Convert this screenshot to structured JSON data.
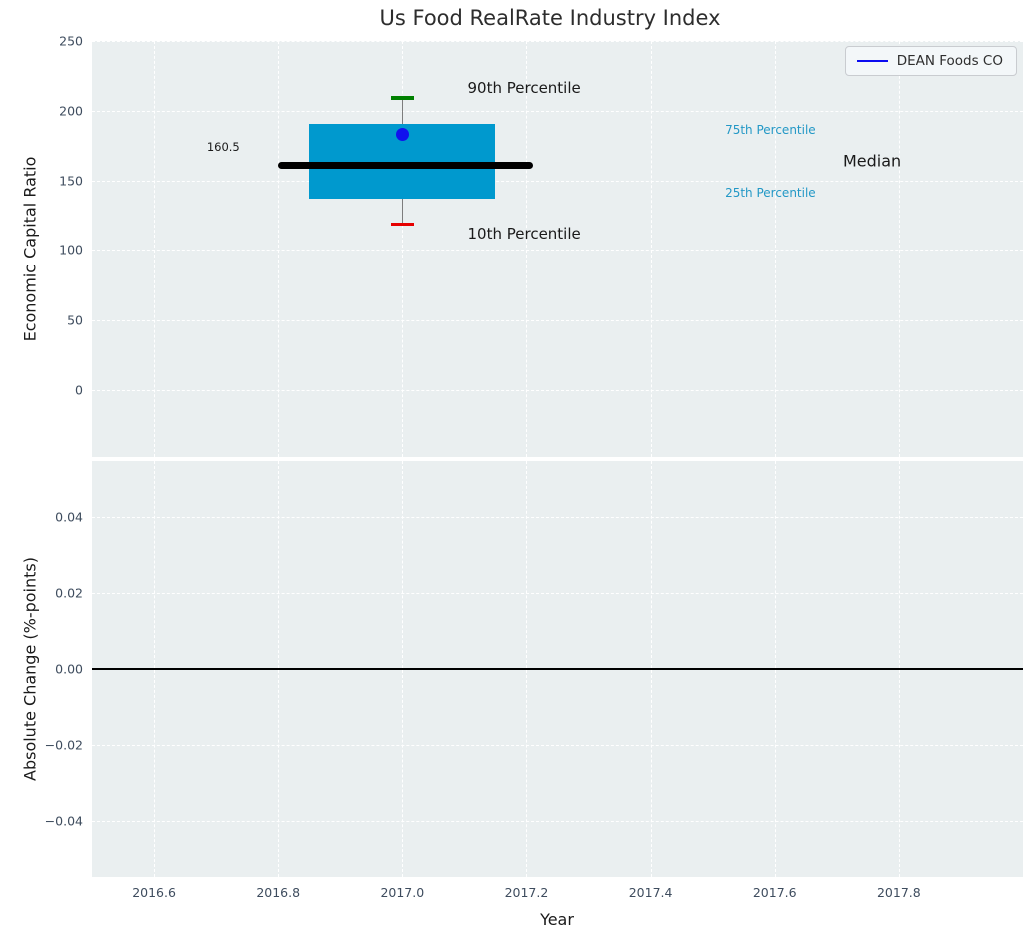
{
  "title": "Us Food RealRate Industry Index",
  "colors": {
    "figure_background": "#ffffff",
    "axes_background": "#eaeff0",
    "grid": "#ffffff",
    "tick_text": "#3e4c5e",
    "box_fill": "#0099ce",
    "median_line": "#000000",
    "whisker": "#7d7d7d",
    "p90_cap": "#008000",
    "p10_cap": "#e60000",
    "company_point": "#1111ee",
    "legend_line": "#0b0bf0",
    "zero_line": "#000000",
    "percentile_label": "#2398c6"
  },
  "chart_data": [
    {
      "type": "boxplot",
      "panel": "top",
      "title": "Us Food RealRate Industry Index",
      "ylabel": "Economic Capital Ratio",
      "xlim": [
        2016.5,
        2018.0
      ],
      "ylim": [
        -48,
        250
      ],
      "grid": true,
      "yticks": [
        {
          "v": 250,
          "label": "250"
        },
        {
          "v": 200,
          "label": "200"
        },
        {
          "v": 150,
          "label": "150"
        },
        {
          "v": 100,
          "label": "100"
        },
        {
          "v": 50,
          "label": "50"
        },
        {
          "v": 0,
          "label": "0"
        }
      ],
      "legend": {
        "position": "upper-right",
        "entries": [
          {
            "label": "DEAN Foods CO",
            "color": "#0b0bf0",
            "marker": "line"
          }
        ]
      },
      "box": {
        "x_center": 2017.0,
        "box_left": 2016.85,
        "box_right": 2017.15,
        "median_left": 2016.8,
        "median_right": 2017.21,
        "cap_halfwidth": 0.018,
        "p10": 118.5,
        "p25": 136.5,
        "median": 160.5,
        "p75": 190.5,
        "p90": 209,
        "box_color": "#0099ce",
        "median_color": "#000000",
        "whisker_color": "#7d7d7d",
        "p90_cap_color": "#008000",
        "p10_cap_color": "#e60000"
      },
      "company_point": {
        "label": "DEAN Foods CO",
        "x": 2017.0,
        "value": 183,
        "color": "#1111ee",
        "size": 13
      },
      "annotations": [
        {
          "text": "90th Percentile",
          "x": 2017.105,
          "y": 216,
          "color": "#1a1a1a",
          "size": 15
        },
        {
          "text": "10th Percentile",
          "x": 2017.105,
          "y": 112,
          "color": "#1a1a1a",
          "size": 15
        },
        {
          "text": "75th Percentile",
          "x": 2017.52,
          "y": 186,
          "color": "#2398c6",
          "size": 12
        },
        {
          "text": "25th Percentile",
          "x": 2017.52,
          "y": 141,
          "color": "#2398c6",
          "size": 12
        },
        {
          "text": "Median",
          "x": 2017.71,
          "y": 164,
          "color": "#1a1a1a",
          "size": 16
        },
        {
          "text": "160.5",
          "x": 2016.685,
          "y": 174,
          "color": "#1a1a1a",
          "size": 11.5
        }
      ]
    },
    {
      "type": "line",
      "panel": "bottom",
      "ylabel": "Absolute Change (%-points)",
      "xlabel": "Year",
      "xlim": [
        2016.5,
        2018.0
      ],
      "ylim": [
        -0.0546,
        0.0546
      ],
      "grid": true,
      "yticks": [
        {
          "v": 0.04,
          "label": "0.04"
        },
        {
          "v": 0.02,
          "label": "0.02"
        },
        {
          "v": 0.0,
          "label": "0.00"
        },
        {
          "v": -0.02,
          "label": "−0.02"
        },
        {
          "v": -0.04,
          "label": "−0.04"
        }
      ],
      "xticks": [
        {
          "v": 2016.6,
          "label": "2016.6"
        },
        {
          "v": 2016.8,
          "label": "2016.8"
        },
        {
          "v": 2017.0,
          "label": "2017.0"
        },
        {
          "v": 2017.2,
          "label": "2017.2"
        },
        {
          "v": 2017.4,
          "label": "2017.4"
        },
        {
          "v": 2017.6,
          "label": "2017.6"
        },
        {
          "v": 2017.8,
          "label": "2017.8"
        }
      ],
      "zero_line": {
        "y": 0.0,
        "color": "#000000",
        "width": 2
      },
      "series": []
    }
  ]
}
